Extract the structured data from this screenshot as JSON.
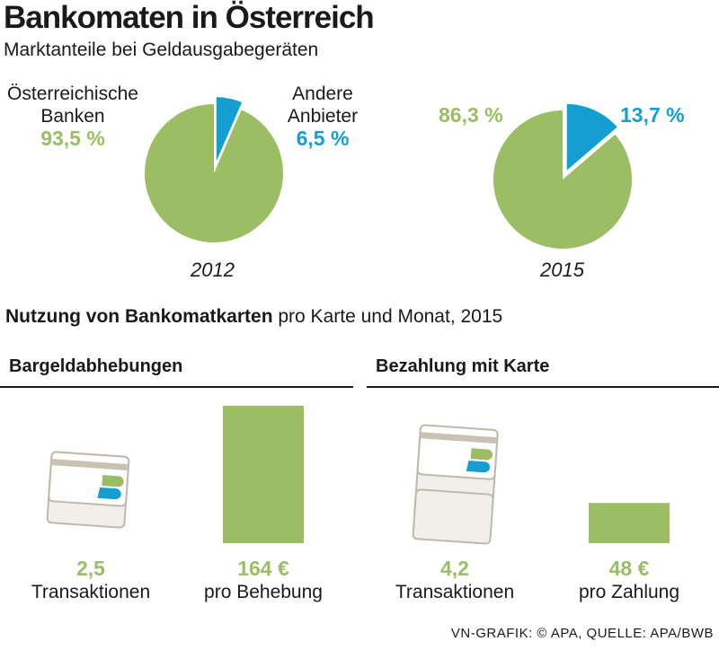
{
  "title": "Bankomaten in Österreich",
  "subtitle": "Marktanteile bei Geldausgabegeräten",
  "colors": {
    "green": "#9bbd63",
    "blue": "#149fd2",
    "card_fill": "#f1efea",
    "card_stroke": "#bfb9ad"
  },
  "chart_data": [
    {
      "type": "pie",
      "year": "2012",
      "slices": [
        {
          "name": "Österreichische Banken",
          "value": 93.5,
          "label": "93,5 %",
          "color": "#9bbd63"
        },
        {
          "name": "Andere Anbieter",
          "value": 6.5,
          "label": "6,5 %",
          "color": "#149fd2"
        }
      ]
    },
    {
      "type": "pie",
      "year": "2015",
      "slices": [
        {
          "value": 86.3,
          "label": "86,3 %",
          "color": "#9bbd63"
        },
        {
          "value": 13.7,
          "label": "13,7 %",
          "color": "#149fd2"
        }
      ]
    },
    {
      "type": "bar",
      "title": "Nutzung von Bankomatkarten",
      "title_suffix": "pro Karte und Monat, 2015",
      "groups": [
        {
          "name": "Bargeldabhebungen",
          "transactions": {
            "value": 2.5,
            "label": "2,5",
            "caption": "Transaktionen",
            "cards": 2
          },
          "amount": {
            "value": 164,
            "label": "164 €",
            "caption": "pro Behebung"
          }
        },
        {
          "name": "Bezahlung mit Karte",
          "transactions": {
            "value": 4.2,
            "label": "4,2",
            "caption": "Transaktionen",
            "cards": 4
          },
          "amount": {
            "value": 48,
            "label": "48 €",
            "caption": "pro Zahlung"
          }
        }
      ]
    }
  ],
  "legend": {
    "green_line1": "Österreichische",
    "green_line2": "Banken",
    "blue_line1": "Andere",
    "blue_line2": "Anbieter"
  },
  "footer": "VN-GRAFIK: © APA, QUELLE: APA/BWB"
}
